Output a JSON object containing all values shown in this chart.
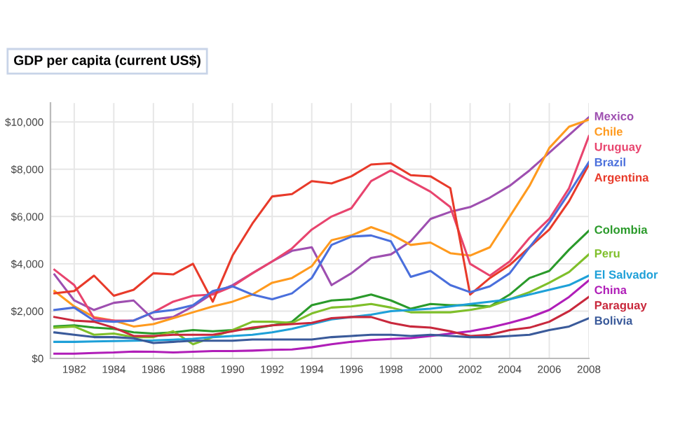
{
  "chart_data": {
    "type": "line",
    "title": "GDP per capita (current US$)",
    "x": [
      1981,
      1982,
      1983,
      1984,
      1985,
      1986,
      1987,
      1988,
      1989,
      1990,
      1991,
      1992,
      1993,
      1994,
      1995,
      1996,
      1997,
      1998,
      1999,
      2000,
      2001,
      2002,
      2003,
      2004,
      2005,
      2006,
      2007,
      2008
    ],
    "xlim": [
      1980.8,
      2008
    ],
    "xticks": [
      1982,
      1984,
      1986,
      1988,
      1990,
      1992,
      1994,
      1996,
      1998,
      2000,
      2002,
      2004,
      2006,
      2008
    ],
    "ylim": [
      0,
      10800
    ],
    "yticks": [
      {
        "value": 0,
        "label": "$0"
      },
      {
        "value": 2000,
        "label": "$2,000"
      },
      {
        "value": 4000,
        "label": "$4,000"
      },
      {
        "value": 6000,
        "label": "$6,000"
      },
      {
        "value": 8000,
        "label": "$8,000"
      },
      {
        "value": 10000,
        "label": "$10,000"
      }
    ],
    "grid": true,
    "legend": "right",
    "marker": "none",
    "line_style": "solid",
    "series": [
      {
        "name": "Mexico",
        "color": "#9e4fb0",
        "values": [
          3550,
          2450,
          2050,
          2350,
          2450,
          1650,
          1750,
          2200,
          2750,
          3100,
          3600,
          4100,
          4550,
          4700,
          3100,
          3600,
          4250,
          4400,
          4950,
          5900,
          6200,
          6400,
          6800,
          7300,
          7950,
          8700,
          9450,
          10200
        ]
      },
      {
        "name": "Chile",
        "color": "#ff9a1e",
        "values": [
          2850,
          2200,
          1750,
          1600,
          1350,
          1450,
          1700,
          1950,
          2200,
          2400,
          2700,
          3200,
          3400,
          3900,
          5000,
          5200,
          5550,
          5250,
          4800,
          4900,
          4450,
          4350,
          4700,
          6000,
          7300,
          8900,
          9800,
          10100
        ]
      },
      {
        "name": "Uruguay",
        "color": "#e8446e",
        "values": [
          3750,
          3100,
          1700,
          1600,
          1600,
          1950,
          2400,
          2650,
          2700,
          3050,
          3600,
          4100,
          4650,
          5450,
          6000,
          6350,
          7500,
          7950,
          7500,
          7050,
          6400,
          4000,
          3500,
          4100,
          5100,
          5900,
          7200,
          9400
        ]
      },
      {
        "name": "Argentina",
        "color": "#e83a2a",
        "values": [
          2750,
          2850,
          3500,
          2650,
          2900,
          3600,
          3550,
          4000,
          2400,
          4350,
          5700,
          6850,
          6950,
          7500,
          7400,
          7700,
          8200,
          8250,
          7750,
          7700,
          7200,
          2700,
          3400,
          3950,
          4700,
          5450,
          6650,
          8200
        ]
      },
      {
        "name": "Brazil",
        "color": "#4a6fdc",
        "values": [
          2050,
          2150,
          1600,
          1550,
          1600,
          1950,
          2050,
          2250,
          2850,
          3050,
          2700,
          2500,
          2750,
          3400,
          4800,
          5150,
          5200,
          4950,
          3450,
          3700,
          3100,
          2800,
          3050,
          3600,
          4700,
          5750,
          7000,
          8300
        ]
      },
      {
        "name": "Colombia",
        "color": "#2a9a2a",
        "values": [
          1350,
          1400,
          1300,
          1250,
          1100,
          1050,
          1100,
          1200,
          1150,
          1200,
          1250,
          1400,
          1550,
          2250,
          2450,
          2500,
          2700,
          2450,
          2100,
          2300,
          2250,
          2250,
          2200,
          2700,
          3400,
          3700,
          4600,
          5400
        ]
      },
      {
        "name": "Peru",
        "color": "#7fbf2a",
        "values": [
          1300,
          1350,
          1000,
          1050,
          900,
          900,
          1150,
          600,
          900,
          1200,
          1550,
          1550,
          1500,
          1900,
          2150,
          2200,
          2300,
          2150,
          1950,
          1950,
          1950,
          2050,
          2200,
          2500,
          2800,
          3200,
          3650,
          4400
        ]
      },
      {
        "name": "El Salvador",
        "color": "#1ea0d8",
        "values": [
          700,
          700,
          720,
          730,
          750,
          760,
          790,
          830,
          900,
          950,
          1000,
          1100,
          1250,
          1450,
          1650,
          1750,
          1850,
          2000,
          2050,
          2100,
          2200,
          2300,
          2400,
          2500,
          2700,
          2900,
          3100,
          3500
        ]
      },
      {
        "name": "China",
        "color": "#b01eb8",
        "values": [
          200,
          200,
          230,
          250,
          290,
          280,
          250,
          280,
          310,
          310,
          330,
          360,
          380,
          470,
          600,
          700,
          780,
          820,
          860,
          950,
          1050,
          1150,
          1300,
          1500,
          1730,
          2050,
          2600,
          3300
        ]
      },
      {
        "name": "Paraguay",
        "color": "#c8283c",
        "values": [
          1750,
          1600,
          1550,
          1300,
          950,
          950,
          1000,
          1000,
          1000,
          1150,
          1300,
          1400,
          1450,
          1500,
          1700,
          1750,
          1750,
          1500,
          1350,
          1300,
          1150,
          950,
          1000,
          1200,
          1300,
          1550,
          2000,
          2600
        ]
      },
      {
        "name": "Bolivia",
        "color": "#3a5a9a",
        "values": [
          1100,
          1000,
          900,
          900,
          850,
          650,
          700,
          750,
          750,
          750,
          800,
          800,
          800,
          800,
          900,
          950,
          1000,
          1000,
          950,
          1000,
          950,
          900,
          900,
          950,
          1000,
          1200,
          1350,
          1700
        ]
      }
    ]
  }
}
